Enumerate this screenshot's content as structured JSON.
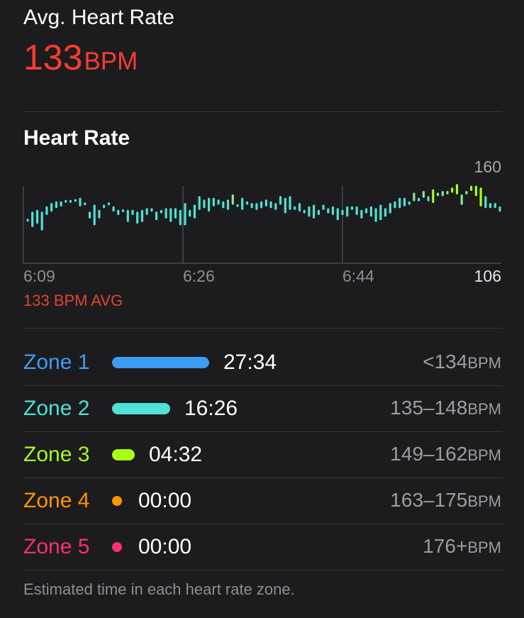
{
  "summary": {
    "label": "Avg. Heart Rate",
    "value": "133",
    "unit": "BPM",
    "color": "#ff3b30"
  },
  "heart_rate_chart": {
    "title": "Heart Rate",
    "y_max_label": "160",
    "y_min_label": "106",
    "avg_caption": "133 BPM AVG"
  },
  "chart_data": {
    "type": "range-bar",
    "title": "Heart Rate",
    "x_tick_labels": [
      "6:09",
      "6:26",
      "6:44"
    ],
    "y_tick_labels": [
      "160",
      "106"
    ],
    "ylim": [
      106,
      160
    ],
    "grid": true,
    "annotation": "133 BPM AVG",
    "series": [
      {
        "min": [
          131,
          127,
          129,
          125,
          134,
          136,
          138,
          139,
          142,
          142,
          142,
          139,
          140,
          132,
          128,
          132,
          138,
          140,
          136,
          134,
          136,
          130,
          134,
          129,
          130,
          134,
          136,
          131,
          135,
          132,
          130,
          132,
          128,
          128,
          133,
          132,
          137,
          138,
          136,
          139,
          140,
          138,
          137,
          140,
          139,
          137,
          140,
          138,
          137,
          138,
          139,
          138,
          137,
          140,
          135,
          137,
          137,
          136,
          135,
          133,
          132,
          134,
          137,
          135,
          134,
          131,
          134,
          133,
          137,
          134,
          132,
          135,
          133,
          130,
          131,
          133,
          135,
          138,
          138,
          139,
          140,
          142,
          142,
          144,
          142,
          141,
          145,
          145,
          146,
          147,
          146,
          140,
          146,
          148,
          145,
          139,
          138,
          138,
          138,
          136
        ],
        "max": [
          131,
          136,
          137,
          136,
          139,
          141,
          142,
          142,
          142,
          142,
          143,
          144,
          141,
          136,
          140,
          137,
          140,
          141,
          139,
          137,
          137,
          137,
          137,
          136,
          137,
          138,
          138,
          136,
          137,
          138,
          138,
          138,
          137,
          141,
          137,
          140,
          145,
          143,
          144,
          144,
          143,
          142,
          143,
          146,
          140,
          144,
          142,
          141,
          141,
          142,
          143,
          142,
          141,
          145,
          144,
          145,
          139,
          141,
          137,
          139,
          140,
          137,
          140,
          138,
          139,
          138,
          137,
          139,
          139,
          139,
          137,
          138,
          139,
          138,
          140,
          138,
          141,
          142,
          144,
          144,
          142,
          147,
          144,
          148,
          145,
          149,
          147,
          148,
          148,
          150,
          152,
          146,
          148,
          151,
          151,
          150,
          145,
          141,
          141,
          139
        ]
      }
    ]
  },
  "zones": [
    {
      "name": "Zone 1",
      "time": "27:34",
      "range": "<134",
      "unit": "BPM",
      "color": "#3f9cf5",
      "fraction": 1.0
    },
    {
      "name": "Zone 2",
      "time": "16:26",
      "range": "135–148",
      "unit": "BPM",
      "color": "#4fe0d6",
      "fraction": 0.6
    },
    {
      "name": "Zone 3",
      "time": "04:32",
      "range": "149–162",
      "unit": "BPM",
      "color": "#a6ff17",
      "fraction": 0.16
    },
    {
      "name": "Zone 4",
      "time": "00:00",
      "range": "163–175",
      "unit": "BPM",
      "color": "#ff9500",
      "fraction": 0
    },
    {
      "name": "Zone 5",
      "time": "00:00",
      "range": "176+",
      "unit": "BPM",
      "color": "#ff2d76",
      "fraction": 0
    }
  ],
  "footnote": "Estimated time in each heart rate zone."
}
